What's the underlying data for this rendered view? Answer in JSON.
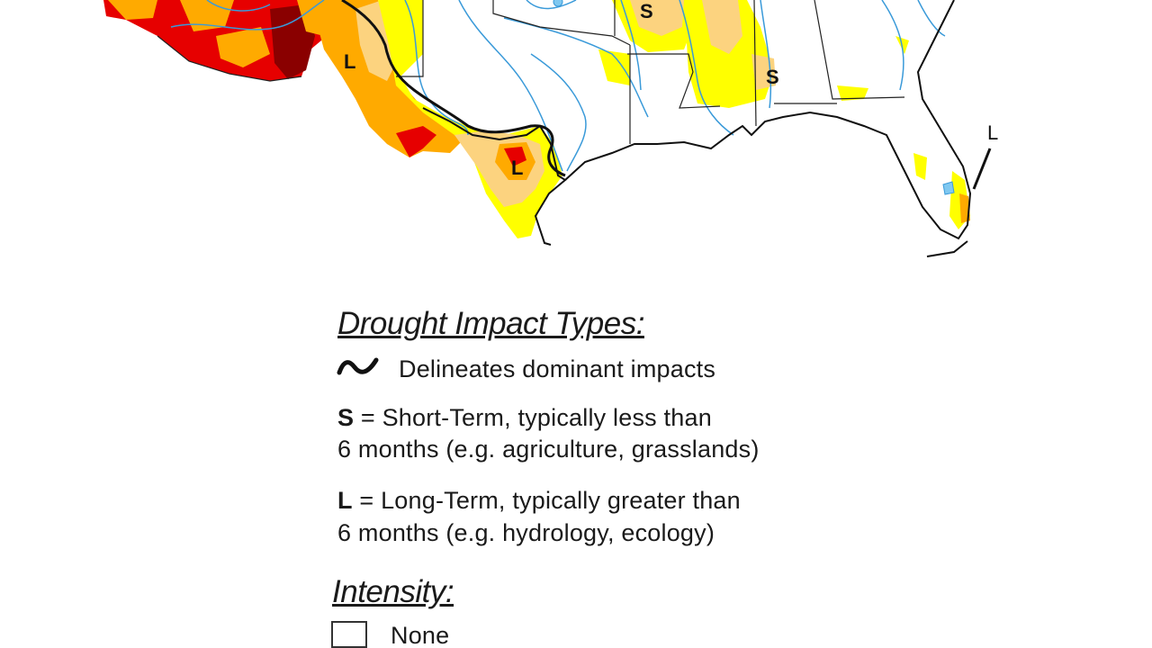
{
  "map": {
    "labels": [
      {
        "text": "S"
      },
      {
        "text": "S"
      },
      {
        "text": "L"
      },
      {
        "text": "L"
      },
      {
        "text": "L"
      }
    ],
    "colors": {
      "water": "#3a9ad9",
      "border": "#111111",
      "abnormally_dry": "#ffff00",
      "moderate": "#fcd37f",
      "severe": "#ffaa00",
      "extreme": "#e60000",
      "exceptional": "#730000"
    }
  },
  "legend": {
    "impact_title": "Drought Impact Types:",
    "delineates": "Delineates dominant impacts",
    "short_term_key": "S",
    "short_term_line1": " = Short-Term, typically less than",
    "short_term_line2": "6 months (e.g. agriculture, grasslands)",
    "long_term_key": "L",
    "long_term_line1": " = Long-Term, typically greater than",
    "long_term_line2": "6 months (e.g. hydrology, ecology)",
    "intensity_title": "Intensity:",
    "intensity_items": [
      {
        "label": "None",
        "color": "#ffffff"
      }
    ]
  }
}
